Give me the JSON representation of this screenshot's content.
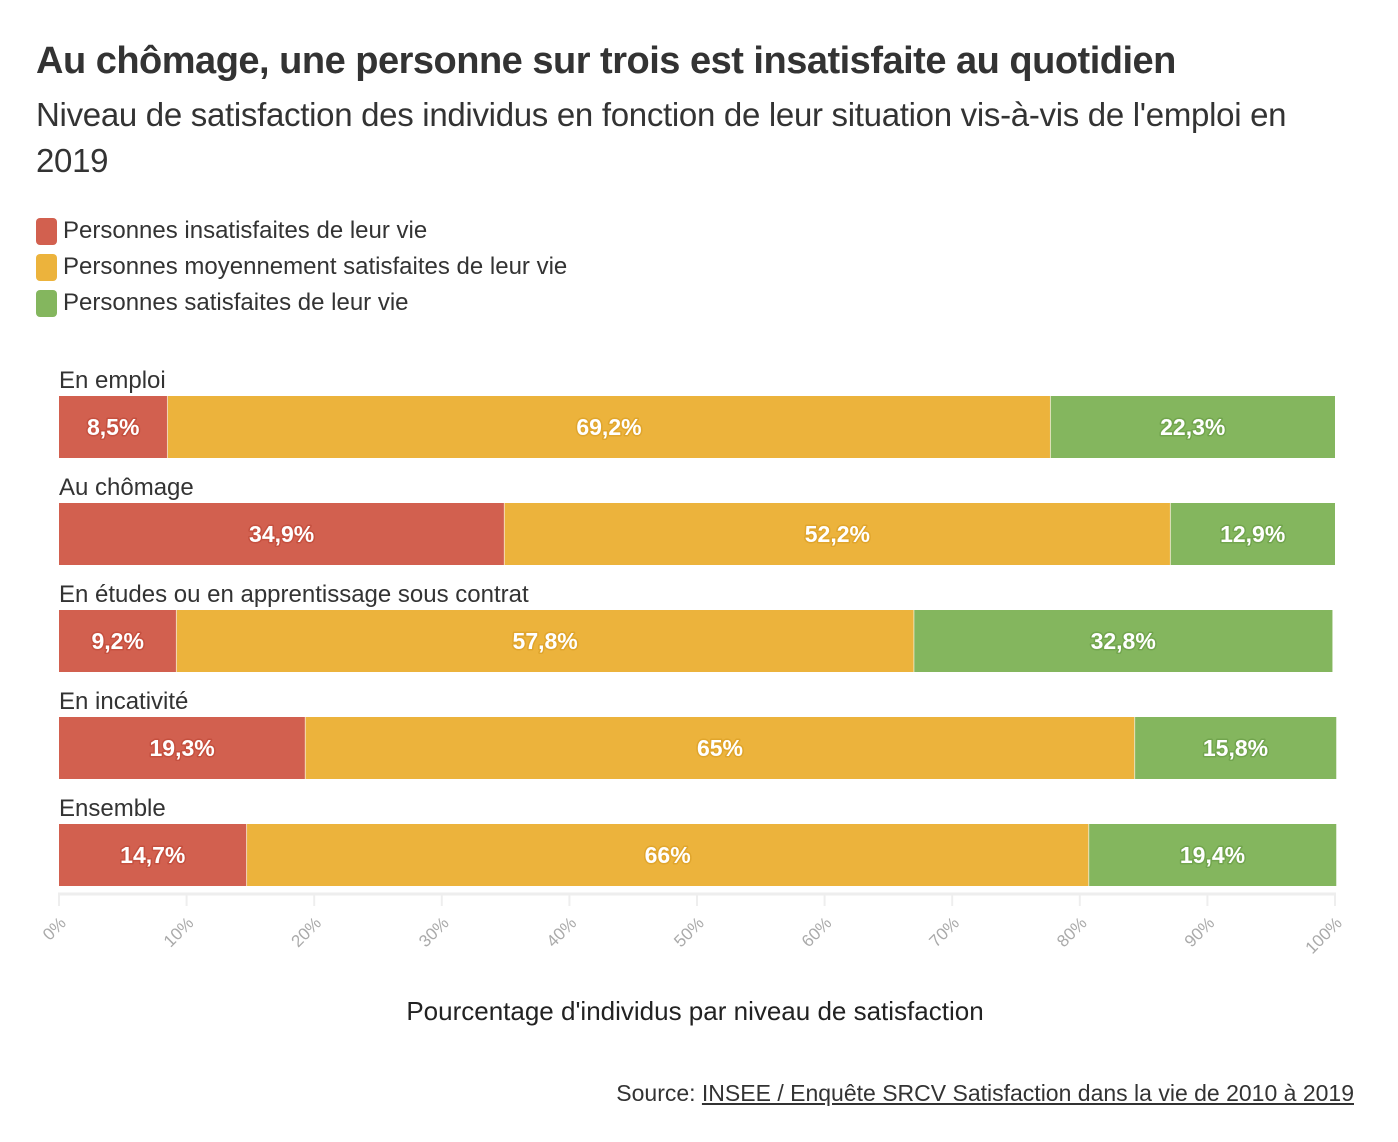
{
  "header": {
    "title": "Au chômage, une personne sur trois est insatisfaite au quotidien",
    "subtitle": "Niveau de satisfaction des individus en fonction de leur situation vis-à-vis de l'emploi en 2019"
  },
  "legend": [
    {
      "label": "Personnes insatisfaites de leur vie",
      "color": "#d2604f"
    },
    {
      "label": "Personnes moyennement satisfaites de leur vie",
      "color": "#ecb33c"
    },
    {
      "label": "Personnes satisfaites de leur vie",
      "color": "#84b65e"
    }
  ],
  "chart_data": {
    "type": "bar",
    "orientation": "horizontal-stacked",
    "title": "Au chômage, une personne sur trois est insatisfaite au quotidien",
    "subtitle": "Niveau de satisfaction des individus en fonction de leur situation vis-à-vis de l'emploi en 2019",
    "xlabel": "Pourcentage d'individus par niveau de satisfaction",
    "ylabel": "",
    "xlim": [
      0,
      100
    ],
    "grid": false,
    "legend_position": "top-left",
    "categories": [
      "En emploi",
      "Au chômage",
      "En études ou en apprentissage sous contrat",
      "En incativité",
      "Ensemble"
    ],
    "series": [
      {
        "name": "Personnes insatisfaites de leur vie",
        "color": "#d2604f",
        "values": [
          8.5,
          34.9,
          9.2,
          19.3,
          14.7
        ],
        "labels": [
          "8,5%",
          "34,9%",
          "9,2%",
          "19,3%",
          "14,7%"
        ]
      },
      {
        "name": "Personnes moyennement satisfaites de leur vie",
        "color": "#ecb33c",
        "values": [
          69.2,
          52.2,
          57.8,
          65,
          66
        ],
        "labels": [
          "69,2%",
          "52,2%",
          "57,8%",
          "65%",
          "66%"
        ]
      },
      {
        "name": "Personnes satisfaites de leur vie",
        "color": "#84b65e",
        "values": [
          22.3,
          12.9,
          32.8,
          15.8,
          19.4
        ],
        "labels": [
          "22,3%",
          "12,9%",
          "32,8%",
          "15,8%",
          "19,4%"
        ]
      }
    ],
    "ticks": [
      0,
      10,
      20,
      30,
      40,
      50,
      60,
      70,
      80,
      90,
      100
    ],
    "tick_labels": [
      "0%",
      "10%",
      "20%",
      "30%",
      "40%",
      "50%",
      "60%",
      "70%",
      "80%",
      "90%",
      "100%"
    ]
  },
  "footer": {
    "source_prefix": "Source: ",
    "source_link": "INSEE / Enquête SRCV Satisfaction dans la vie de 2010 à 2019"
  }
}
